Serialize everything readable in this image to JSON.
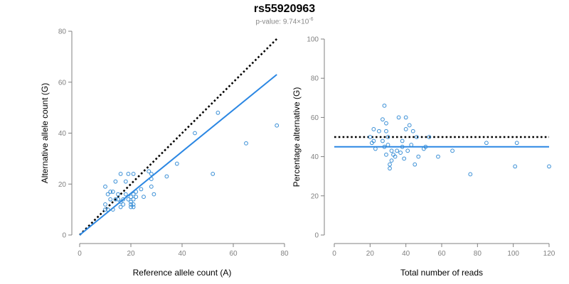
{
  "header": {
    "title": "rs55920963",
    "subtitle_prefix": "p-value: 9.74×10",
    "subtitle_exponent": "-6"
  },
  "colors": {
    "point": "#3a8fd6",
    "fit_line": "#2b87e3",
    "reference_line": "#000000",
    "axis": "#808080"
  },
  "chart_data": [
    {
      "type": "scatter",
      "xlabel": "Reference allele count (A)",
      "ylabel": "Alternative allele count (G)",
      "xlim": [
        0,
        80
      ],
      "ylim": [
        0,
        80
      ],
      "xticks": [
        0,
        20,
        40,
        60,
        80
      ],
      "yticks": [
        0,
        20,
        40,
        60,
        80
      ],
      "points": {
        "x": [
          10,
          10,
          10,
          11,
          11,
          12,
          12,
          13,
          13,
          14,
          14,
          15,
          15,
          16,
          16,
          16,
          17,
          17,
          18,
          18,
          19,
          19,
          20,
          20,
          20,
          20,
          21,
          21,
          21,
          21,
          21,
          22,
          22,
          24,
          25,
          27,
          28,
          28,
          28,
          29,
          34,
          38,
          45,
          52,
          54,
          65,
          77
        ],
        "y": [
          19,
          12,
          10,
          16,
          10,
          17,
          14,
          10,
          17,
          21,
          14,
          16,
          14,
          24,
          13,
          11,
          14,
          12,
          21,
          16,
          14,
          24,
          15,
          13,
          12,
          11,
          24,
          16,
          14,
          12,
          11,
          17,
          15,
          18,
          15,
          25,
          24,
          22,
          19,
          16,
          23,
          28,
          40,
          24,
          48,
          36,
          43
        ]
      },
      "lines": [
        {
          "style": "dotted",
          "color": "#000000",
          "x": [
            0,
            77
          ],
          "y": [
            0,
            77
          ]
        },
        {
          "style": "solid",
          "color": "#2b87e3",
          "x": [
            0,
            77
          ],
          "y": [
            0,
            63
          ]
        }
      ]
    },
    {
      "type": "scatter",
      "xlabel": "Total number of reads",
      "ylabel": "Percentage alternative (G)",
      "xlim": [
        0,
        120
      ],
      "ylim": [
        0,
        100
      ],
      "xticks": [
        0,
        20,
        40,
        60,
        80,
        100,
        120
      ],
      "yticks": [
        0,
        20,
        40,
        60,
        80,
        100
      ],
      "points": {
        "x": [
          20,
          21,
          22,
          22,
          23,
          25,
          27,
          27,
          28,
          28,
          29,
          29,
          29,
          30,
          30,
          31,
          31,
          32,
          32,
          33,
          34,
          35,
          36,
          37,
          38,
          38,
          39,
          40,
          40,
          41,
          42,
          43,
          44,
          45,
          46,
          47,
          50,
          51,
          53,
          58,
          66,
          76,
          85,
          101,
          102,
          120
        ],
        "y": [
          50,
          47,
          48,
          54,
          44,
          53,
          59,
          48,
          45,
          66,
          53,
          41,
          57,
          50,
          46,
          36,
          34,
          43,
          38,
          41,
          40,
          43,
          60,
          42,
          48,
          45,
          39,
          60,
          54,
          43,
          56,
          46,
          53,
          36,
          50,
          40,
          44,
          45,
          50,
          40,
          43,
          31,
          47,
          35,
          47,
          35
        ]
      },
      "lines": [
        {
          "style": "dotted",
          "color": "#000000",
          "x": [
            0,
            120
          ],
          "y": [
            50,
            50
          ]
        },
        {
          "style": "solid",
          "color": "#2b87e3",
          "x": [
            0,
            120
          ],
          "y": [
            45,
            45
          ]
        }
      ]
    }
  ]
}
